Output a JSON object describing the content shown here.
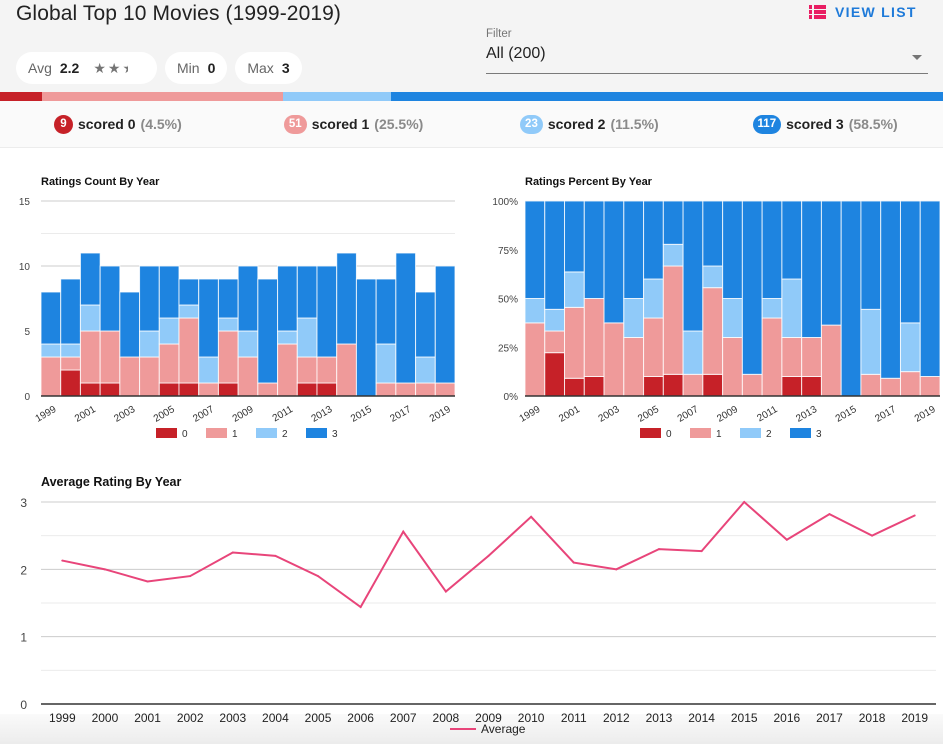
{
  "header": {
    "title": "Global Top 10 Movies (1999-2019)",
    "view_list_label": "VIEW LIST",
    "view_list_icon": "list-icon"
  },
  "stats": {
    "avg_label": "Avg",
    "avg_value": "2.2",
    "avg_stars": 2.2,
    "min_label": "Min",
    "min_value": "0",
    "max_label": "Max",
    "max_value": "3"
  },
  "filter": {
    "label": "Filter",
    "value": "All (200)"
  },
  "colors": {
    "score0": "#c62128",
    "score1": "#ef9a9a",
    "score2": "#90caf9",
    "score3": "#1e84e0",
    "accent": "#1e7ad9",
    "line": "#e8457a"
  },
  "distribution": [
    {
      "score": "0",
      "count": "9",
      "label": "scored 0",
      "pct": "(4.5%)",
      "fraction": 0.045
    },
    {
      "score": "1",
      "count": "51",
      "label": "scored 1",
      "pct": "(25.5%)",
      "fraction": 0.255
    },
    {
      "score": "2",
      "count": "23",
      "label": "scored 2",
      "pct": "(11.5%)",
      "fraction": 0.115
    },
    {
      "score": "3",
      "count": "117",
      "label": "scored 3",
      "pct": "(58.5%)",
      "fraction": 0.585
    }
  ],
  "chart_data": [
    {
      "type": "bar",
      "stacked": true,
      "title": "Ratings Count By Year",
      "xlabel": "",
      "ylabel": "",
      "ylim": [
        0,
        15
      ],
      "yticks": [
        "0",
        "5",
        "10",
        "15"
      ],
      "xtick_labels": [
        "1999",
        "2001",
        "2003",
        "2005",
        "2007",
        "2009",
        "2011",
        "2013",
        "2015",
        "2017",
        "2019"
      ],
      "categories": [
        "1999",
        "2000",
        "2001",
        "2002",
        "2003",
        "2004",
        "2005",
        "2006",
        "2007",
        "2008",
        "2009",
        "2010",
        "2011",
        "2012",
        "2013",
        "2014",
        "2015",
        "2016",
        "2017",
        "2018",
        "2019"
      ],
      "series": [
        {
          "name": "0",
          "values": [
            0,
            2,
            1,
            1,
            0,
            0,
            1,
            1,
            0,
            1,
            0,
            0,
            0,
            1,
            1,
            0,
            0,
            0,
            0,
            0,
            0
          ]
        },
        {
          "name": "1",
          "values": [
            3,
            1,
            4,
            4,
            3,
            3,
            3,
            5,
            1,
            4,
            3,
            1,
            4,
            2,
            2,
            4,
            0,
            1,
            1,
            1,
            1
          ]
        },
        {
          "name": "2",
          "values": [
            1,
            1,
            2,
            0,
            0,
            2,
            2,
            1,
            2,
            1,
            2,
            0,
            1,
            3,
            0,
            0,
            0,
            3,
            0,
            2,
            0
          ]
        },
        {
          "name": "3",
          "values": [
            4,
            5,
            4,
            5,
            5,
            5,
            4,
            2,
            6,
            3,
            5,
            8,
            5,
            4,
            7,
            7,
            9,
            5,
            10,
            5,
            9
          ]
        }
      ],
      "legend": "bottom",
      "grid": true
    },
    {
      "type": "bar",
      "stacked": true,
      "percent": true,
      "title": "Ratings Percent By Year",
      "xlabel": "",
      "ylabel": "",
      "ylim": [
        0,
        100
      ],
      "yticks": [
        "0%",
        "25%",
        "50%",
        "75%",
        "100%"
      ],
      "xtick_labels": [
        "1999",
        "2001",
        "2003",
        "2005",
        "2007",
        "2009",
        "2011",
        "2013",
        "2015",
        "2017",
        "2019"
      ],
      "categories": [
        "1999",
        "2000",
        "2001",
        "2002",
        "2003",
        "2004",
        "2005",
        "2006",
        "2007",
        "2008",
        "2009",
        "2010",
        "2011",
        "2012",
        "2013",
        "2014",
        "2015",
        "2016",
        "2017",
        "2018",
        "2019"
      ],
      "series": [
        {
          "name": "0",
          "values": [
            0,
            2,
            1,
            1,
            0,
            0,
            1,
            1,
            0,
            1,
            0,
            0,
            0,
            1,
            1,
            0,
            0,
            0,
            0,
            0,
            0
          ]
        },
        {
          "name": "1",
          "values": [
            3,
            1,
            4,
            4,
            3,
            3,
            3,
            5,
            1,
            4,
            3,
            1,
            4,
            2,
            2,
            4,
            0,
            1,
            1,
            1,
            1
          ]
        },
        {
          "name": "2",
          "values": [
            1,
            1,
            2,
            0,
            0,
            2,
            2,
            1,
            2,
            1,
            2,
            0,
            1,
            3,
            0,
            0,
            0,
            3,
            0,
            2,
            0
          ]
        },
        {
          "name": "3",
          "values": [
            4,
            5,
            4,
            5,
            5,
            5,
            4,
            2,
            6,
            3,
            5,
            8,
            5,
            4,
            7,
            7,
            9,
            5,
            10,
            5,
            9
          ]
        }
      ],
      "legend": "bottom",
      "grid": true
    },
    {
      "type": "line",
      "title": "Average Rating By Year",
      "xlabel": "",
      "ylabel": "",
      "ylim": [
        0,
        3
      ],
      "yticks": [
        "0",
        "1",
        "2",
        "3"
      ],
      "categories": [
        "1999",
        "2000",
        "2001",
        "2002",
        "2003",
        "2004",
        "2005",
        "2006",
        "2007",
        "2008",
        "2009",
        "2010",
        "2011",
        "2012",
        "2013",
        "2014",
        "2015",
        "2016",
        "2017",
        "2018",
        "2019"
      ],
      "series": [
        {
          "name": "Average",
          "values": [
            2.13,
            2.0,
            1.82,
            1.9,
            2.25,
            2.2,
            1.9,
            1.44,
            2.56,
            1.67,
            2.2,
            2.78,
            2.1,
            2.0,
            2.3,
            2.27,
            3.0,
            2.44,
            2.82,
            2.5,
            2.8
          ]
        }
      ],
      "legend": "bottom",
      "grid": true
    }
  ]
}
